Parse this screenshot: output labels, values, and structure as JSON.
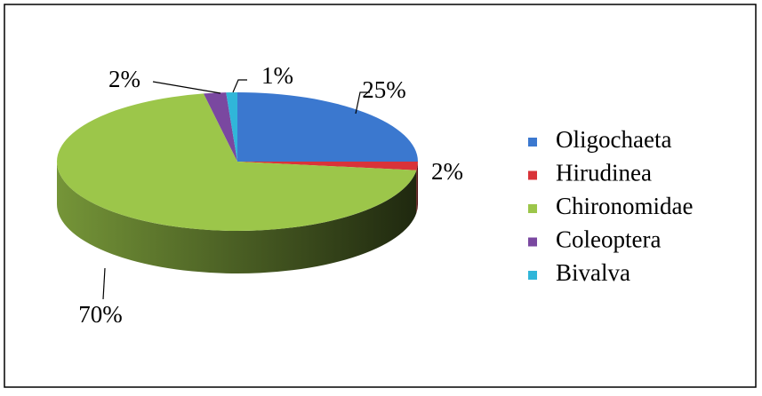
{
  "chart_data": {
    "type": "pie3d",
    "categories": [
      "Oligochaeta",
      "Hirudinea",
      "Chironomidae",
      "Coleoptera",
      "Bivalva"
    ],
    "values": [
      25,
      2,
      70,
      2,
      1
    ],
    "value_labels": [
      "25%",
      "2%",
      "70%",
      "2%",
      "1%"
    ],
    "colors": [
      "#3b78cf",
      "#d93339",
      "#9cc64a",
      "#7a48a0",
      "#30b6d9"
    ],
    "legend": "right"
  }
}
